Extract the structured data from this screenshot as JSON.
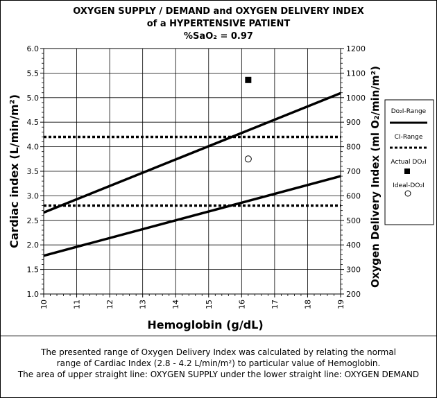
{
  "title_line1": "OXYGEN SUPPLY / DEMAND and OXYGEN DELIVERY INDEX",
  "title_line2": "of a HYPERTENSIVE PATIENT",
  "title_line3": "%SaO₂ = 0.97",
  "caption": {
    "line1": "The presented range of Oxygen Delivery Index was calculated by relating the normal",
    "line2": "range of Cardiac Index (2.8 - 4.2 L/min/m²) to particular value of Hemoglobin.",
    "line3": "The area of upper straight line: OXYGEN SUPPLY under the lower straight line: OXYGEN DEMAND"
  },
  "chart_data": {
    "type": "line",
    "xlabel": "Hemoglobin (g/dL)",
    "ylabel_left": "Cardiac index (L/min/m²)",
    "ylabel_right": "Oxygen Delivery Index (ml O₂/min/m²)",
    "xlim": [
      10,
      19
    ],
    "ylim_left": [
      1.0,
      6.0
    ],
    "ylim_right": [
      200,
      1200
    ],
    "x_ticks": [
      "10",
      "11",
      "12",
      "13",
      "14",
      "15",
      "16",
      "17",
      "18",
      "19"
    ],
    "y_left_ticks": [
      "1.0",
      "1.5",
      "2.0",
      "2.5",
      "3.0",
      "3.5",
      "4.0",
      "4.5",
      "5.0",
      "5.5",
      "6.0"
    ],
    "y_right_ticks": [
      "200",
      "300",
      "400",
      "500",
      "600",
      "700",
      "800",
      "900",
      "1000",
      "1100",
      "1200"
    ],
    "grid": true,
    "do2i_range": [
      {
        "x": [
          10,
          19
        ],
        "y_right": [
          532,
          1018
        ]
      },
      {
        "x": [
          10,
          19
        ],
        "y_right": [
          356,
          680
        ]
      }
    ],
    "ci_range": [
      4.2,
      2.8
    ],
    "actual_do2i": {
      "x": 16.2,
      "y_right": 1072
    },
    "ideal_do2i": {
      "x": 16.2,
      "y_right": 750
    },
    "legend": {
      "placement": "right",
      "items": [
        {
          "label": "Do₂I-Range",
          "symbol": "solid-line"
        },
        {
          "label": "CI-Range",
          "symbol": "dotted-line"
        },
        {
          "label": "Actual DO₂I",
          "symbol": "filled-square"
        },
        {
          "label": "Ideal-DO₂I",
          "symbol": "open-circle"
        }
      ]
    }
  }
}
